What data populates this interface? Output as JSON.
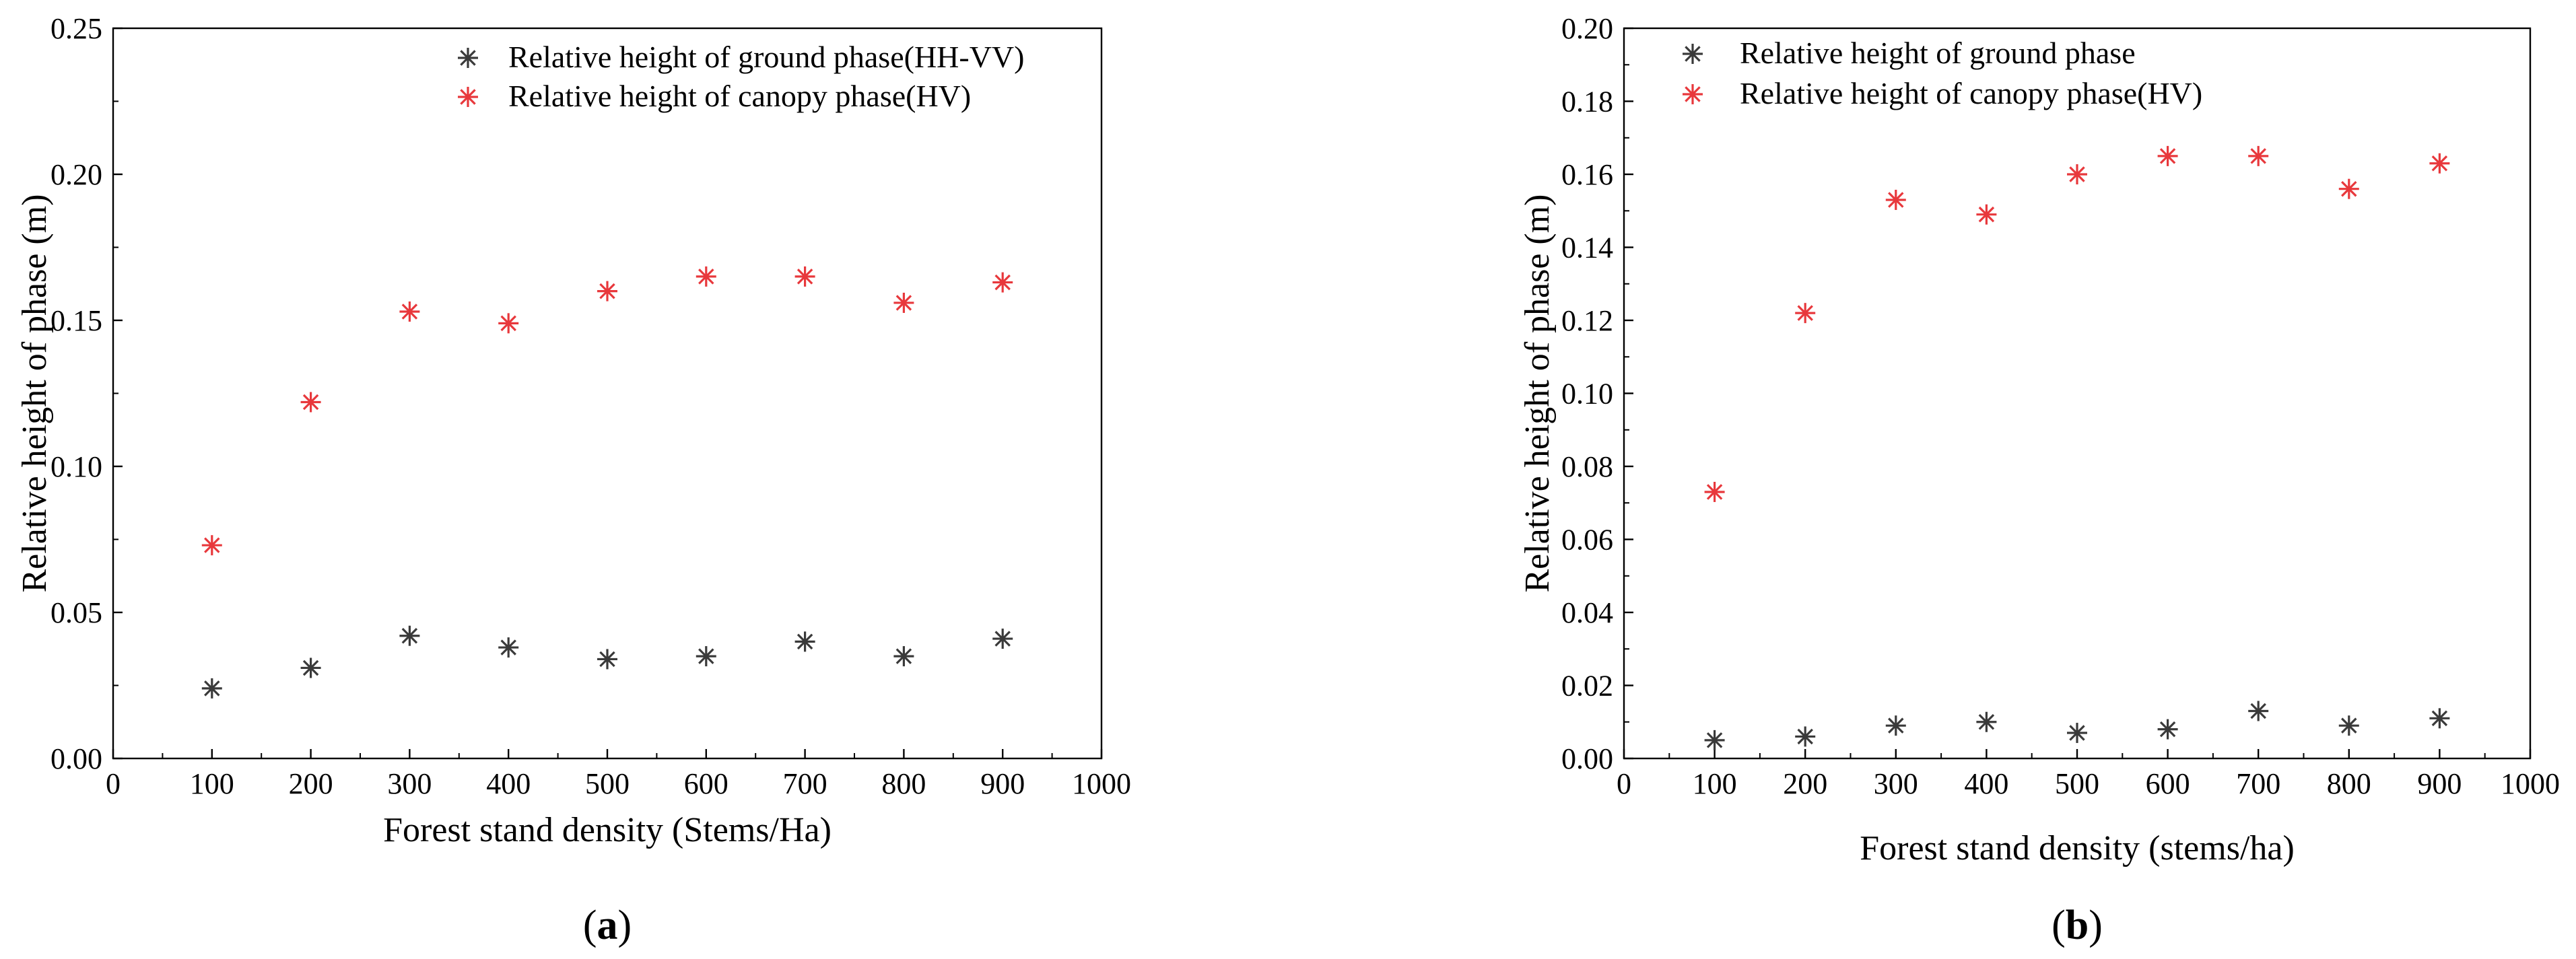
{
  "chart_data": [
    {
      "type": "scatter",
      "panel_label": "a",
      "xlabel": "Forest stand density (Stems/Ha)",
      "ylabel": "Relative height of phase (m)",
      "xlim": [
        0,
        1000
      ],
      "ylim": [
        0,
        0.25
      ],
      "xticks": [
        "0",
        "100",
        "200",
        "300",
        "400",
        "500",
        "600",
        "700",
        "800",
        "900",
        "1000"
      ],
      "yticks": [
        "0.00",
        "0.05",
        "0.10",
        "0.15",
        "0.20",
        "0.25"
      ],
      "legend_position": "top-right",
      "x": [
        100,
        200,
        300,
        400,
        500,
        600,
        700,
        800,
        900
      ],
      "series": [
        {
          "name": "Relative height of ground phase(HH-VV)",
          "color": "#3a3a3a",
          "values": [
            0.024,
            0.031,
            0.042,
            0.038,
            0.034,
            0.035,
            0.04,
            0.035,
            0.041
          ]
        },
        {
          "name": "Relative height of canopy phase(HV)",
          "color": "#e8383c",
          "values": [
            0.073,
            0.122,
            0.153,
            0.149,
            0.16,
            0.165,
            0.165,
            0.156,
            0.163
          ]
        }
      ]
    },
    {
      "type": "scatter",
      "panel_label": "b",
      "xlabel": "Forest stand density (stems/ha)",
      "ylabel": "Relative height of phase (m)",
      "xlim": [
        0,
        1000
      ],
      "ylim": [
        0,
        0.2
      ],
      "xticks": [
        "0",
        "100",
        "200",
        "300",
        "400",
        "500",
        "600",
        "700",
        "800",
        "900",
        "1000"
      ],
      "yticks": [
        "0.00",
        "0.02",
        "0.04",
        "0.06",
        "0.08",
        "0.10",
        "0.12",
        "0.14",
        "0.16",
        "0.18",
        "0.20"
      ],
      "legend_position": "top-left",
      "x": [
        100,
        200,
        300,
        400,
        500,
        600,
        700,
        800,
        900
      ],
      "series": [
        {
          "name": "Relative height of ground phase",
          "color": "#3a3a3a",
          "values": [
            0.005,
            0.006,
            0.009,
            0.01,
            0.007,
            0.008,
            0.013,
            0.009,
            0.011
          ]
        },
        {
          "name": "Relative height of canopy phase(HV)",
          "color": "#e8383c",
          "values": [
            0.073,
            0.122,
            0.153,
            0.149,
            0.16,
            0.165,
            0.165,
            0.156,
            0.163
          ]
        }
      ]
    }
  ]
}
